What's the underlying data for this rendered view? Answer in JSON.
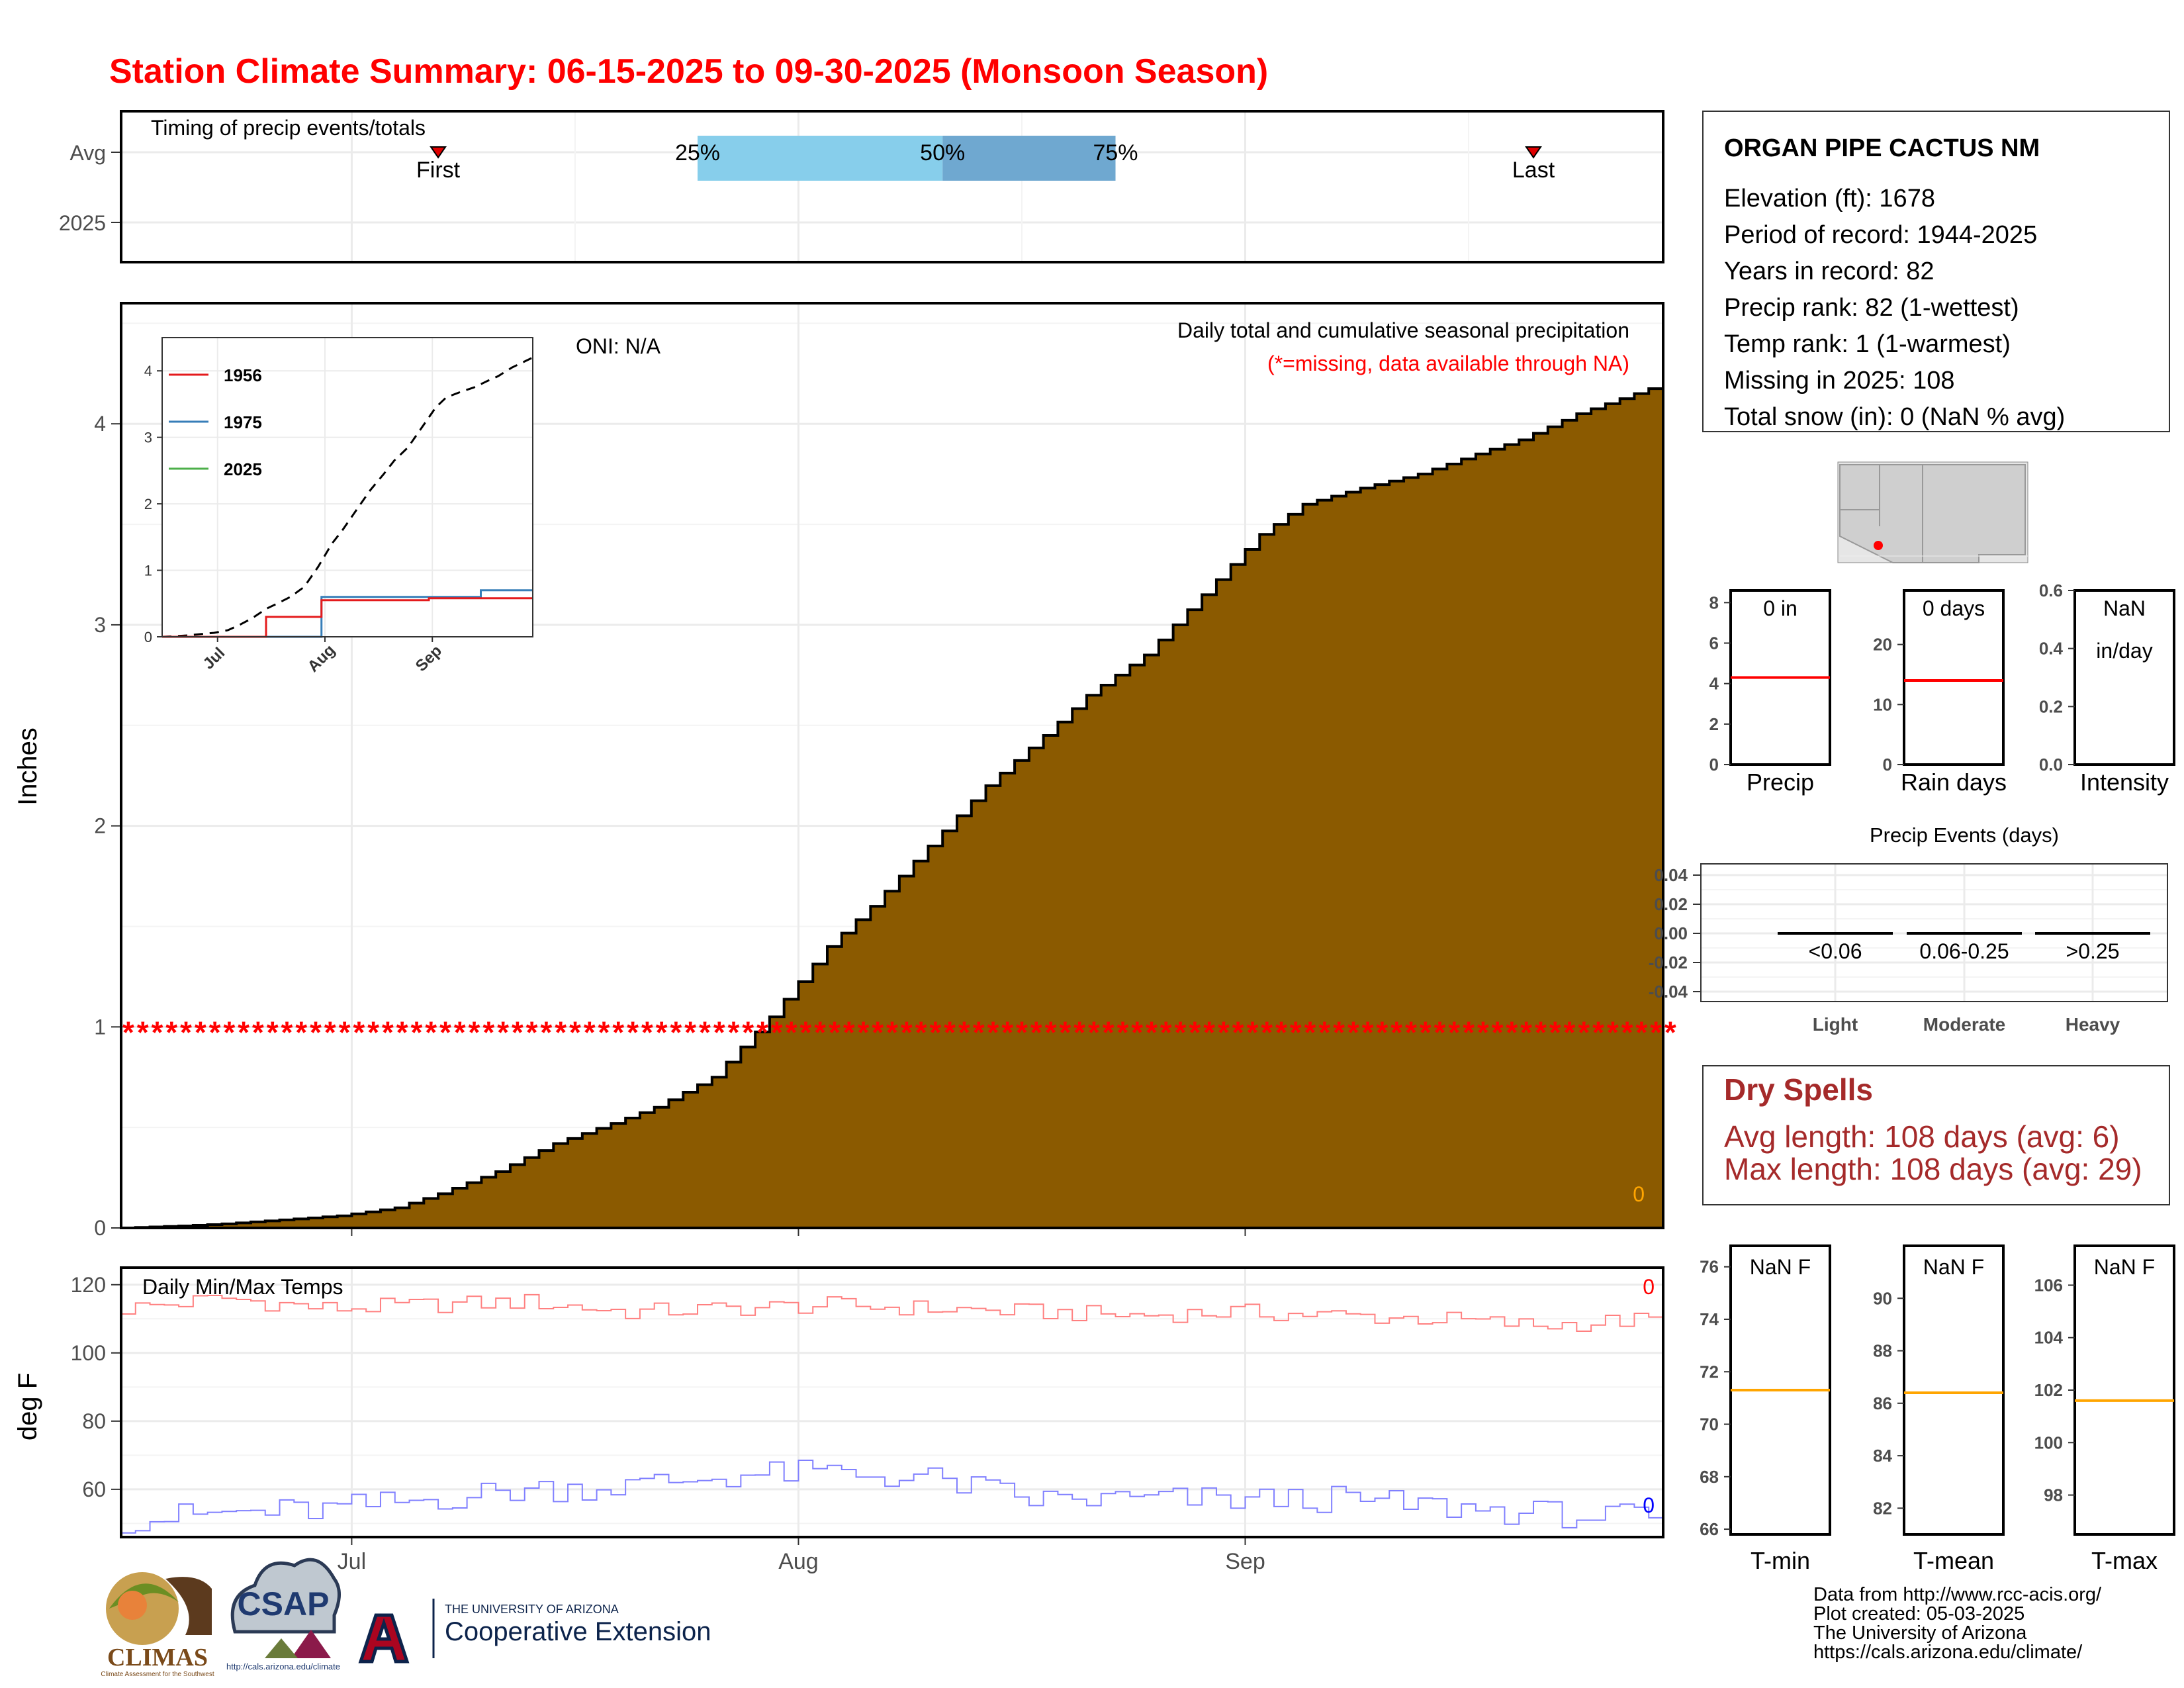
{
  "title": "Station Climate Summary: 06-15-2025 to 09-30-2025 (Monsoon Season)",
  "colors": {
    "title": "#FF0000",
    "precip_fill": "#8B5A00",
    "quartile_light": "#87CEEB",
    "quartile_dark": "#6FA8D0",
    "tmax_line": "#FF8080",
    "tmin_line": "#8080FF",
    "missing": "#FF0000",
    "avg_line": "#FF0000",
    "temp_avg_line": "#FFA500",
    "dry_spell": "#A52A2A",
    "series_1956": "#E41A1C",
    "series_1975": "#377EB8",
    "series_2025": "#4DAF4A"
  },
  "timing_panel": {
    "label": "Timing of precip events/totals",
    "y_labels": [
      "Avg",
      "2025"
    ],
    "first_label": "First",
    "last_label": "Last",
    "q25": "25%",
    "q50": "50%",
    "q75": "75%",
    "first_day": 22,
    "last_day": 98,
    "q25_day": 40,
    "q50_day": 57,
    "q75_day": 69
  },
  "x_month_labels": [
    "Jul",
    "Aug",
    "Sep"
  ],
  "precip_panel": {
    "ylabel": "Inches",
    "y_ticks": [
      "0",
      "1",
      "2",
      "3",
      "4"
    ],
    "subtitle": "Daily total and cumulative seasonal precipitation",
    "missing_note": "(*=missing, data available through NA)",
    "oni": "ONI: N/A",
    "corner_count": "0",
    "missing_level": 1,
    "missing_marker": "*"
  },
  "inset": {
    "legend": [
      "1956",
      "1975",
      "2025"
    ],
    "y_ticks": [
      "0",
      "1",
      "2",
      "3",
      "4"
    ],
    "x_ticks": [
      "Jul",
      "Aug",
      "Sep"
    ]
  },
  "temp_panel": {
    "label": "Daily Min/Max Temps",
    "ylabel": "deg F",
    "y_ticks": [
      "60",
      "80",
      "100",
      "120"
    ],
    "tmax_count": "0",
    "tmin_count": "0"
  },
  "station": {
    "name": "ORGAN PIPE CACTUS NM",
    "lines": [
      "Elevation (ft): 1678",
      "Period of record: 1944-2025",
      "Years in record: 82",
      "Precip rank: 82 (1-wettest)",
      "Temp rank: 1 (1-warmest)",
      "Missing in 2025: 108",
      "Total snow (in): 0 (NaN % avg)"
    ]
  },
  "mini_bars": [
    {
      "label": "Precip",
      "value_text": "0 in",
      "ticks": [
        "0",
        "2",
        "4",
        "6",
        "8"
      ],
      "avg": 4.3
    },
    {
      "label": "Rain days",
      "value_text": "0 days",
      "ticks": [
        "0",
        "10",
        "20"
      ],
      "avg": 14
    },
    {
      "label": "Intensity",
      "value_text": "NaN",
      "value_text2": "in/day",
      "ticks": [
        "0.0",
        "0.2",
        "0.4",
        "0.6"
      ]
    }
  ],
  "precip_events": {
    "title": "Precip Events (days)",
    "y_ticks": [
      "0.04",
      "0.02",
      "0.00",
      "-0.02",
      "-0.04"
    ],
    "bins": [
      "<0.06",
      "0.06-0.25",
      ">0.25"
    ],
    "categories": [
      "Light",
      "Moderate",
      "Heavy"
    ],
    "values": [
      0,
      0,
      0
    ]
  },
  "dry_spells": {
    "title": "Dry Spells",
    "avg": "Avg length: 108 days (avg: 6)",
    "max": "Max length: 108 days (avg: 29)"
  },
  "temp_bars": [
    {
      "label": "T-min",
      "value_text": "NaN F",
      "ticks": [
        "66",
        "68",
        "70",
        "72",
        "74",
        "76"
      ],
      "avg": 71.3
    },
    {
      "label": "T-mean",
      "value_text": "NaN F",
      "ticks": [
        "82",
        "84",
        "86",
        "88",
        "90"
      ],
      "avg": 86.4
    },
    {
      "label": "T-max",
      "value_text": "NaN F",
      "ticks": [
        "98",
        "100",
        "102",
        "104",
        "106"
      ],
      "avg": 101.6
    }
  ],
  "footer": {
    "credit_lines": [
      "Data from http://www.rcc-acis.org/",
      "Plot created: 05-03-2025",
      "The University of Arizona",
      "https://cals.arizona.edu/climate/"
    ],
    "logos": {
      "climas": "CLIMAS",
      "climas_sub": "Climate Assessment for the Southwest",
      "csap": "CSAP",
      "csap_url": "http://cals.arizona.edu/climate",
      "ua_small": "THE UNIVERSITY OF ARIZONA",
      "ua_big": "Cooperative Extension"
    }
  },
  "chart_data": [
    {
      "type": "area",
      "description_role": "main",
      "xlabel": "",
      "ylabel": "Inches",
      "ylim": [
        0,
        4.6
      ],
      "x": [
        "06-15",
        "06-19",
        "06-22",
        "06-26",
        "06-30",
        "07-04",
        "07-07",
        "07-11",
        "07-15",
        "07-19",
        "07-22",
        "07-26",
        "07-30",
        "08-03",
        "08-06",
        "08-10",
        "08-14",
        "08-18",
        "08-21",
        "08-25",
        "08-29",
        "09-02",
        "09-05",
        "09-09",
        "09-13",
        "09-17",
        "09-20",
        "09-24",
        "09-28",
        "09-30"
      ],
      "values": [
        0.0,
        0.01,
        0.02,
        0.04,
        0.06,
        0.1,
        0.17,
        0.28,
        0.42,
        0.52,
        0.6,
        0.75,
        1.05,
        1.4,
        1.6,
        1.9,
        2.2,
        2.45,
        2.65,
        2.85,
        3.15,
        3.45,
        3.6,
        3.68,
        3.75,
        3.85,
        3.92,
        4.05,
        4.15,
        4.2
      ],
      "title": "Daily total and cumulative seasonal precipitation"
    },
    {
      "type": "line",
      "description_role": "inset",
      "ylim": [
        0,
        4.5
      ],
      "x": [
        "06-15",
        "06-30",
        "07-15",
        "07-31",
        "08-15",
        "08-31",
        "09-15",
        "09-30"
      ],
      "series": [
        {
          "name": "1956",
          "values": [
            0,
            0,
            0.3,
            0.55,
            0.55,
            0.58,
            0.58,
            0.58
          ]
        },
        {
          "name": "1975",
          "values": [
            0,
            0,
            0,
            0.6,
            0.6,
            0.6,
            0.7,
            0.7
          ]
        },
        {
          "name": "2025",
          "values": [
            null,
            null,
            null,
            null,
            null,
            null,
            null,
            null
          ]
        }
      ]
    },
    {
      "type": "line",
      "description_role": "temps",
      "ylabel": "deg F",
      "ylim": [
        46,
        125
      ],
      "x": [
        "06-15",
        "06-22",
        "06-29",
        "07-06",
        "07-13",
        "07-20",
        "07-27",
        "08-03",
        "08-10",
        "08-17",
        "08-24",
        "08-31",
        "09-07",
        "09-14",
        "09-21",
        "09-30"
      ],
      "series": [
        {
          "name": "Max",
          "values": [
            113,
            116,
            113,
            114,
            115,
            112,
            113,
            114,
            113,
            112,
            111,
            112,
            111,
            110,
            108,
            110
          ]
        },
        {
          "name": "Min",
          "values": [
            51,
            53,
            54,
            57,
            60,
            61,
            64,
            65,
            63,
            57,
            57,
            57,
            57,
            55,
            53,
            51
          ]
        }
      ]
    }
  ]
}
